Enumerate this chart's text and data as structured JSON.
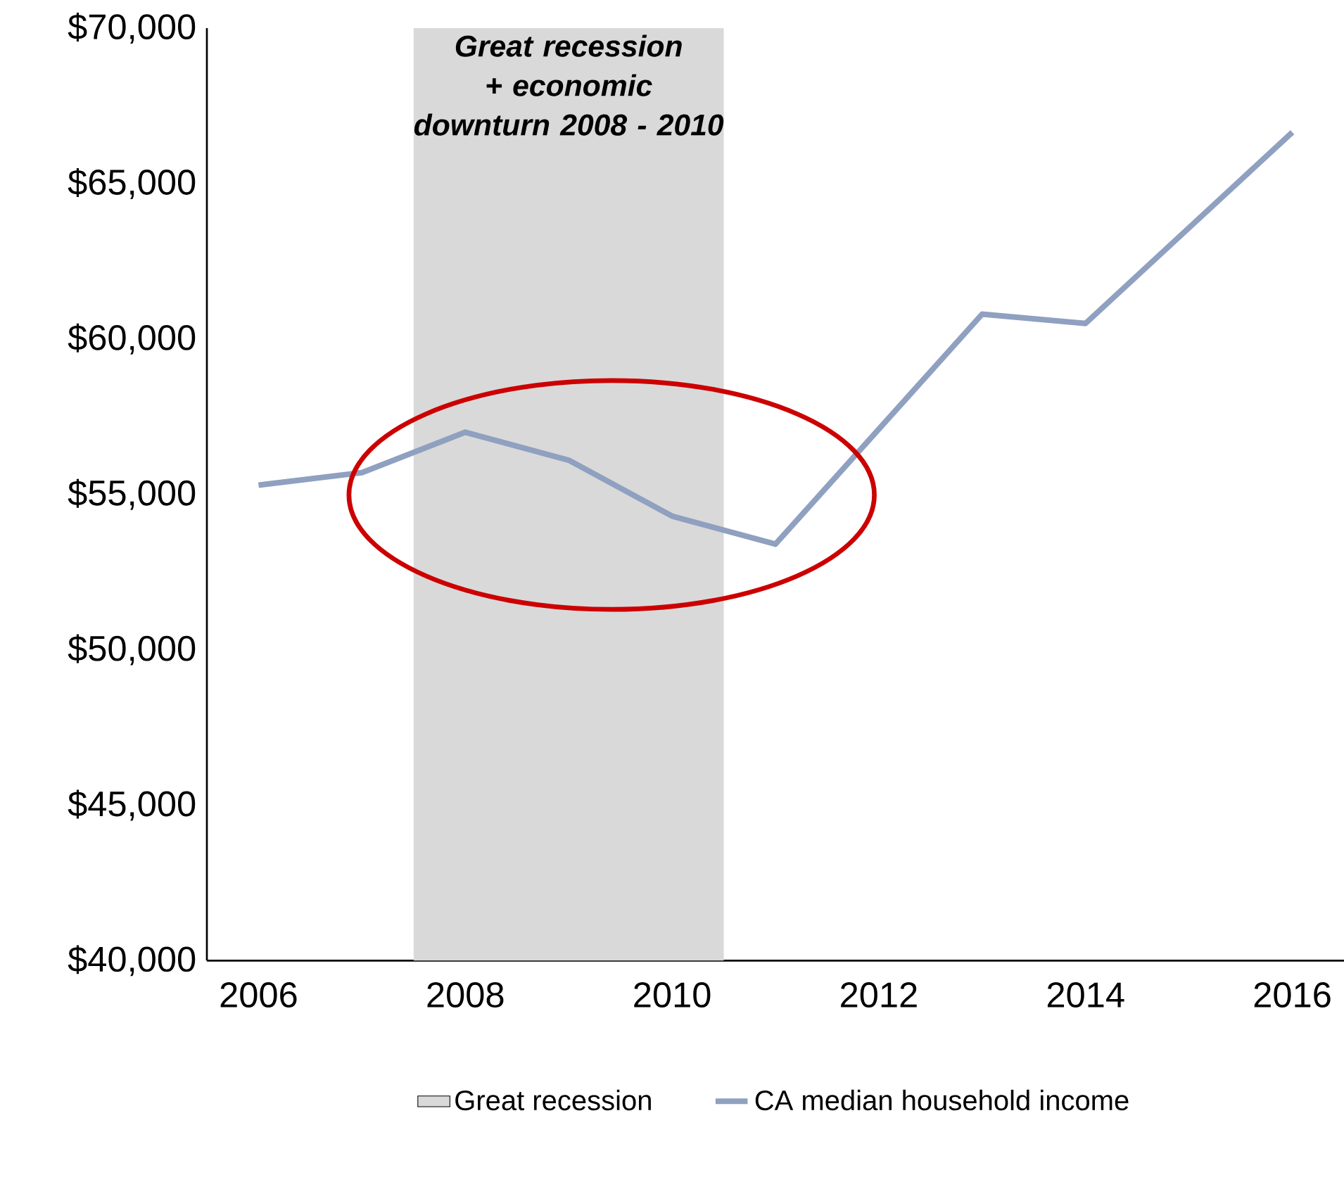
{
  "chart_data": {
    "type": "line",
    "x": [
      2006,
      2007,
      2008,
      2009,
      2010,
      2011,
      2013,
      2014,
      2016
    ],
    "series": [
      {
        "name": "CA median household income",
        "color": "#8fa0c0",
        "values": [
          55300,
          55700,
          57000,
          56100,
          54300,
          53400,
          60800,
          60500,
          66650
        ]
      }
    ],
    "xlim": [
      2005.5,
      2016.5
    ],
    "xticks": [
      2006,
      2008,
      2010,
      2012,
      2014,
      2016
    ],
    "ylim": [
      40000,
      70000
    ],
    "yticks": [
      {
        "value": 40000,
        "label": "$40,000"
      },
      {
        "value": 45000,
        "label": "$45,000"
      },
      {
        "value": 50000,
        "label": "$50,000"
      },
      {
        "value": 55000,
        "label": "$55,000"
      },
      {
        "value": 60000,
        "label": "$60,000"
      },
      {
        "value": 65000,
        "label": "$65,000"
      },
      {
        "value": 70000,
        "label": "$70,000"
      }
    ],
    "bands": [
      {
        "axis": "x",
        "from": 2007.5,
        "to": 2010.5,
        "label": "Great recession",
        "color": "#d9d9d9"
      }
    ],
    "annotations": [
      "Great recession + economic downturn 2008 - 2010"
    ],
    "legend": "bottom",
    "grid": false,
    "marker": "none",
    "line_style": "solid"
  }
}
